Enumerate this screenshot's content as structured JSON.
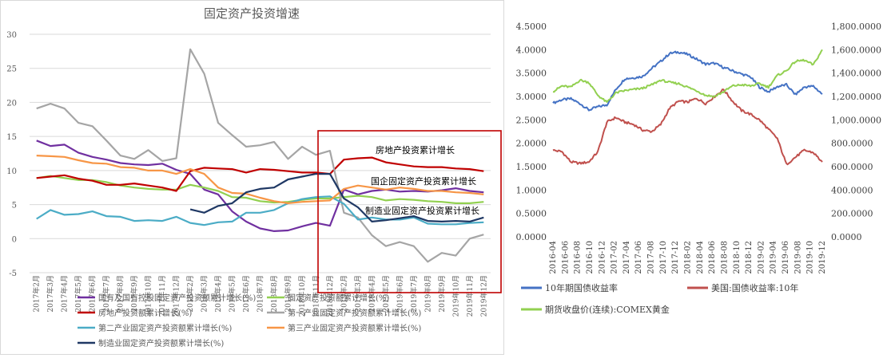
{
  "chart_data": [
    {
      "type": "line",
      "title": "固定资产投资增速",
      "ylim": [
        -5,
        30
      ],
      "yticks": [
        -5,
        0,
        5,
        10,
        15,
        20,
        25,
        30
      ],
      "grid": true,
      "legend_position": "bottom",
      "categories": [
        "2017年2月",
        "2017年3月",
        "2017年4月",
        "2017年5月",
        "2017年6月",
        "2017年7月",
        "2017年8月",
        "2017年9月",
        "2017年10月",
        "2017年11月",
        "2017年12月",
        "2018年2月",
        "2018年3月",
        "2018年4月",
        "2018年5月",
        "2018年6月",
        "2018年7月",
        "2018年8月",
        "2018年9月",
        "2018年10月",
        "2018年11月",
        "2018年12月",
        "2019年2月",
        "2019年3月",
        "2019年4月",
        "2019年5月",
        "2019年6月",
        "2019年7月",
        "2019年8月",
        "2019年9月",
        "2019年10月",
        "2019年11月",
        "2019年12月"
      ],
      "series": [
        {
          "name": "国有及国有控股固定资产投资额累计增长(%)",
          "color": "#7030a0",
          "values": [
            14.4,
            13.6,
            13.8,
            12.6,
            12.0,
            11.6,
            11.1,
            10.9,
            10.8,
            11.0,
            10.1,
            9.5,
            7.2,
            6.5,
            4.0,
            2.5,
            1.5,
            1.1,
            1.2,
            1.8,
            2.3,
            1.9,
            7.2,
            6.5,
            7.0,
            7.2,
            6.9,
            7.0,
            6.9,
            7.1,
            7.4,
            7.0,
            6.8
          ]
        },
        {
          "name": "固定资产投资额累计增长(%)",
          "color": "#92d050",
          "values": [
            8.9,
            9.2,
            8.9,
            8.6,
            8.6,
            8.3,
            7.8,
            7.5,
            7.3,
            7.2,
            7.2,
            7.9,
            7.5,
            7.0,
            6.1,
            6.0,
            5.5,
            5.3,
            5.4,
            5.7,
            5.9,
            5.9,
            6.1,
            6.3,
            6.1,
            5.6,
            5.8,
            5.7,
            5.5,
            5.4,
            5.2,
            5.2,
            5.4
          ]
        },
        {
          "name": "房地产投资额累计增长(%)",
          "color": "#c00000",
          "values": [
            8.9,
            9.1,
            9.3,
            8.8,
            8.5,
            7.9,
            7.9,
            8.1,
            7.8,
            7.5,
            7.0,
            9.9,
            10.4,
            10.3,
            10.2,
            9.7,
            10.2,
            10.1,
            9.9,
            9.7,
            9.7,
            9.5,
            11.6,
            11.8,
            11.9,
            11.2,
            10.9,
            10.6,
            10.5,
            10.5,
            10.3,
            10.2,
            9.9
          ]
        },
        {
          "name": "第一产业固定资产投资额累计增长(%)",
          "color": "#a5a5a5",
          "values": [
            19.1,
            19.8,
            19.1,
            17.0,
            16.5,
            14.4,
            12.2,
            11.7,
            13.0,
            11.4,
            11.8,
            27.8,
            24.2,
            17.0,
            15.2,
            13.5,
            13.7,
            14.2,
            11.7,
            13.5,
            12.3,
            12.9,
            3.8,
            3.1,
            0.5,
            -1.1,
            -0.5,
            -1.1,
            -3.4,
            -2.1,
            -2.5,
            0.0,
            0.6
          ]
        },
        {
          "name": "第二产业固定资产投资额累计增长(%)",
          "color": "#4bacc6",
          "values": [
            2.9,
            4.2,
            3.5,
            3.6,
            4.0,
            3.3,
            3.2,
            2.6,
            2.7,
            2.6,
            3.2,
            2.3,
            2.0,
            2.4,
            2.5,
            3.8,
            3.8,
            4.2,
            5.2,
            5.8,
            6.1,
            6.2,
            5.1,
            2.8,
            3.1,
            2.8,
            2.8,
            3.1,
            2.2,
            2.1,
            2.1,
            2.3,
            2.4
          ]
        },
        {
          "name": "第三产业固定资产投资额累计增长(%)",
          "color": "#f79646",
          "values": [
            12.2,
            12.1,
            12.0,
            11.5,
            11.1,
            11.0,
            10.5,
            10.4,
            10.0,
            10.0,
            9.5,
            10.2,
            9.5,
            7.5,
            6.7,
            6.6,
            6.0,
            5.5,
            5.2,
            5.4,
            5.5,
            5.6,
            7.3,
            7.8,
            7.5,
            7.2,
            7.5,
            7.3,
            7.0,
            7.0,
            6.8,
            6.7,
            6.5
          ]
        },
        {
          "name": "制造业固定资产投资额累计增长(%)",
          "color": "#1f3864",
          "values": [
            null,
            null,
            null,
            null,
            null,
            null,
            null,
            null,
            null,
            null,
            null,
            4.3,
            3.8,
            4.8,
            5.2,
            6.8,
            7.3,
            7.5,
            8.7,
            9.1,
            9.5,
            9.5,
            5.9,
            4.6,
            2.5,
            2.7,
            3.0,
            3.3,
            2.6,
            2.5,
            2.6,
            2.5,
            3.1
          ]
        }
      ],
      "annotations": [
        {
          "text": "房地产投资累计增长"
        },
        {
          "text": "国企固定资产投资累计增长"
        },
        {
          "text": "制造业固定资产投资累计增长"
        }
      ],
      "highlight_box": {
        "from": "2018年12月",
        "to": "2019年12月",
        "color": "#c00000"
      }
    },
    {
      "type": "line",
      "title": "",
      "dual_axis": true,
      "left_ylim": [
        0,
        4.5
      ],
      "left_yticks": [
        "0.0000",
        "0.5000",
        "1.0000",
        "1.5000",
        "2.0000",
        "2.5000",
        "3.0000",
        "3.5000",
        "4.0000",
        "4.5000"
      ],
      "right_ylim": [
        0,
        1800
      ],
      "right_yticks": [
        "0.0000",
        "200.0000",
        "400.0000",
        "600.0000",
        "800.0000",
        "1,000.0000",
        "1,200.0000",
        "1,400.0000",
        "1,600.0000",
        "1,800.0000"
      ],
      "x_ticks": [
        "2016-04",
        "2016-06",
        "2016-08",
        "2016-10",
        "2016-12",
        "2017-02",
        "2017-04",
        "2017-06",
        "2017-08",
        "2017-10",
        "2017-12",
        "2018-02",
        "2018-04",
        "2018-06",
        "2018-08",
        "2018-10",
        "2018-12",
        "2019-02",
        "2019-04",
        "2019-06",
        "2019-08",
        "2019-10",
        "2019-12"
      ],
      "legend_position": "bottom",
      "series": [
        {
          "name": "10年期国债收益率",
          "axis": "left",
          "color": "#4472c4",
          "values": [
            2.86,
            2.93,
            2.95,
            2.85,
            2.71,
            2.78,
            2.82,
            3.15,
            3.38,
            3.4,
            3.43,
            3.6,
            3.75,
            3.92,
            3.95,
            3.9,
            3.8,
            3.69,
            3.71,
            3.62,
            3.55,
            3.48,
            3.42,
            3.2,
            3.1,
            3.21,
            3.25,
            3.04,
            3.2,
            3.22,
            3.05
          ]
        },
        {
          "name": "美国:国债收益率:10年",
          "axis": "left",
          "color": "#c0504d",
          "values": [
            1.85,
            1.82,
            1.6,
            1.57,
            1.6,
            1.82,
            2.45,
            2.55,
            2.45,
            2.4,
            2.28,
            2.25,
            2.4,
            2.75,
            2.9,
            2.88,
            2.96,
            2.85,
            3.0,
            3.15,
            2.9,
            2.7,
            2.62,
            2.5,
            2.3,
            2.1,
            1.55,
            1.7,
            1.85,
            1.8,
            1.6
          ]
        },
        {
          "name": "期货收盘价(连续):COMEX黄金",
          "axis": "right",
          "color": "#92d050",
          "values": [
            1240,
            1290,
            1280,
            1340,
            1320,
            1210,
            1150,
            1230,
            1250,
            1260,
            1270,
            1300,
            1340,
            1320,
            1310,
            1280,
            1250,
            1210,
            1200,
            1240,
            1290,
            1300,
            1290,
            1310,
            1280,
            1380,
            1420,
            1500,
            1510,
            1470,
            1600
          ]
        }
      ]
    }
  ]
}
